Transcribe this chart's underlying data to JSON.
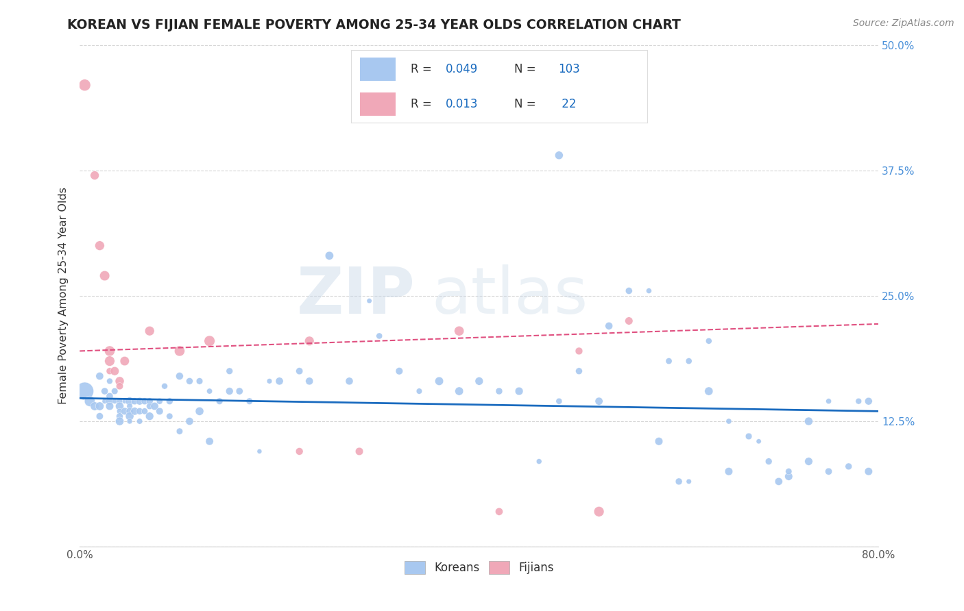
{
  "title": "KOREAN VS FIJIAN FEMALE POVERTY AMONG 25-34 YEAR OLDS CORRELATION CHART",
  "source": "Source: ZipAtlas.com",
  "ylabel": "Female Poverty Among 25-34 Year Olds",
  "xlim": [
    0.0,
    0.8
  ],
  "ylim": [
    0.0,
    0.5
  ],
  "xticks": [
    0.0,
    0.2,
    0.4,
    0.6,
    0.8
  ],
  "xticklabels": [
    "0.0%",
    "",
    "",
    "",
    "80.0%"
  ],
  "yticks": [
    0.0,
    0.125,
    0.25,
    0.375,
    0.5
  ],
  "yticklabels_right": [
    "",
    "12.5%",
    "25.0%",
    "37.5%",
    "50.0%"
  ],
  "legend_r_korean": "0.049",
  "legend_n_korean": "103",
  "legend_r_fijian": "0.013",
  "legend_n_fijian": "22",
  "korean_color": "#a8c8f0",
  "fijian_color": "#f0a8b8",
  "korean_line_color": "#1a6bbf",
  "fijian_line_color": "#e05080",
  "watermark_zip": "ZIP",
  "watermark_atlas": "atlas",
  "legend_text_color": "#1a6bbf",
  "right_axis_color": "#4a90d9",
  "korean_x": [
    0.005,
    0.01,
    0.015,
    0.02,
    0.02,
    0.02,
    0.025,
    0.025,
    0.03,
    0.03,
    0.03,
    0.03,
    0.035,
    0.035,
    0.04,
    0.04,
    0.04,
    0.04,
    0.04,
    0.045,
    0.045,
    0.05,
    0.05,
    0.05,
    0.05,
    0.05,
    0.055,
    0.055,
    0.06,
    0.06,
    0.06,
    0.065,
    0.065,
    0.07,
    0.07,
    0.07,
    0.075,
    0.08,
    0.08,
    0.085,
    0.09,
    0.09,
    0.1,
    0.1,
    0.11,
    0.11,
    0.12,
    0.12,
    0.13,
    0.13,
    0.14,
    0.15,
    0.15,
    0.16,
    0.17,
    0.18,
    0.19,
    0.2,
    0.22,
    0.23,
    0.25,
    0.27,
    0.29,
    0.3,
    0.32,
    0.34,
    0.36,
    0.38,
    0.4,
    0.42,
    0.44,
    0.46,
    0.48,
    0.5,
    0.52,
    0.55,
    0.57,
    0.59,
    0.61,
    0.63,
    0.65,
    0.67,
    0.69,
    0.71,
    0.73,
    0.75,
    0.77,
    0.79,
    0.48,
    0.53,
    0.58,
    0.63,
    0.68,
    0.73,
    0.78,
    0.6,
    0.65,
    0.7,
    0.75,
    0.79,
    0.61,
    0.71
  ],
  "korean_y": [
    0.155,
    0.145,
    0.14,
    0.17,
    0.14,
    0.13,
    0.155,
    0.145,
    0.165,
    0.15,
    0.145,
    0.14,
    0.155,
    0.145,
    0.145,
    0.14,
    0.135,
    0.13,
    0.125,
    0.145,
    0.135,
    0.145,
    0.14,
    0.135,
    0.13,
    0.125,
    0.145,
    0.135,
    0.145,
    0.135,
    0.125,
    0.145,
    0.135,
    0.145,
    0.14,
    0.13,
    0.14,
    0.145,
    0.135,
    0.16,
    0.145,
    0.13,
    0.17,
    0.115,
    0.165,
    0.125,
    0.165,
    0.135,
    0.155,
    0.105,
    0.145,
    0.175,
    0.155,
    0.155,
    0.145,
    0.095,
    0.165,
    0.165,
    0.175,
    0.165,
    0.29,
    0.165,
    0.245,
    0.21,
    0.175,
    0.155,
    0.165,
    0.155,
    0.165,
    0.155,
    0.155,
    0.085,
    0.145,
    0.175,
    0.145,
    0.255,
    0.255,
    0.185,
    0.185,
    0.205,
    0.125,
    0.11,
    0.085,
    0.07,
    0.085,
    0.075,
    0.08,
    0.075,
    0.39,
    0.22,
    0.105,
    0.155,
    0.105,
    0.125,
    0.145,
    0.065,
    0.075,
    0.065,
    0.145,
    0.145,
    0.065,
    0.075
  ],
  "fijian_x": [
    0.005,
    0.015,
    0.02,
    0.025,
    0.03,
    0.03,
    0.03,
    0.035,
    0.04,
    0.04,
    0.045,
    0.07,
    0.1,
    0.13,
    0.22,
    0.28,
    0.38,
    0.5,
    0.55,
    0.23,
    0.42,
    0.52
  ],
  "fijian_y": [
    0.46,
    0.37,
    0.3,
    0.27,
    0.195,
    0.185,
    0.175,
    0.175,
    0.165,
    0.16,
    0.185,
    0.215,
    0.195,
    0.205,
    0.095,
    0.095,
    0.215,
    0.195,
    0.225,
    0.205,
    0.035,
    0.035
  ]
}
